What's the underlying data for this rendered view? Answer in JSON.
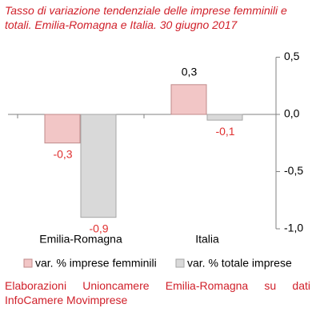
{
  "chart_data": {
    "type": "bar",
    "title": "Tasso di variazione tendenziale delle imprese femminili e totali. Emilia-Romagna e Italia. 30 giugno 2017",
    "categories": [
      "Emilia-Romagna",
      "Italia"
    ],
    "series": [
      {
        "name": "var. % imprese femminili",
        "color": "#f2c6c6",
        "values": [
          -0.25,
          0.26
        ],
        "value_labels": [
          "-0,3",
          "0,3"
        ]
      },
      {
        "name": "var. % totale imprese",
        "color": "#d9d9d9",
        "values": [
          -0.9,
          -0.05
        ],
        "value_labels": [
          "-0,9",
          "-0,1"
        ]
      }
    ],
    "ylim": [
      -1.0,
      0.5
    ],
    "yticks": [
      {
        "value": 0.5,
        "label": "0,5"
      },
      {
        "value": 0.0,
        "label": "0,0"
      },
      {
        "value": -0.5,
        "label": "-0,5"
      },
      {
        "value": -1.0,
        "label": "-1,0"
      }
    ],
    "legend": "bottom",
    "source": "Elaborazioni Unioncamere Emilia-Romagna su dati InfoCamere Movimprese"
  }
}
